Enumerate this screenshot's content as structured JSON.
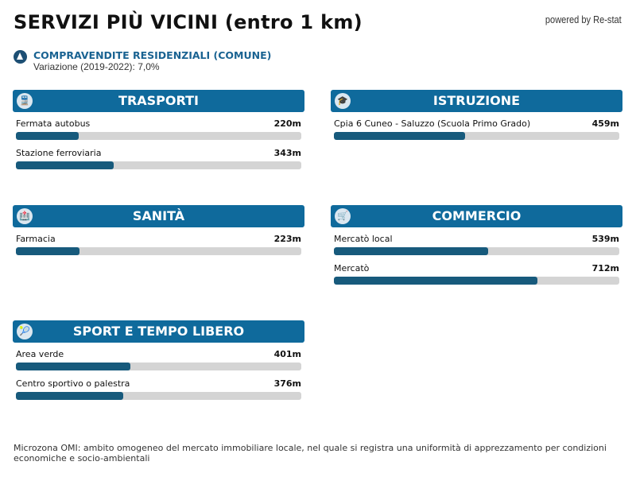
{
  "header": {
    "title": "SERVIZI PIÙ VICINI (entro 1 km)",
    "powered": "powered by Re-stat"
  },
  "trend": {
    "icon": "triangle-up-icon",
    "title": "COMPRAVENDITE RESIDENZIALI (COMUNE)",
    "subtitle": "Variazione (2019-2022): 7,0%"
  },
  "max_distance_m": 1000,
  "panels": [
    {
      "title": "TRASPORTI",
      "icon": "train-icon",
      "items": [
        {
          "label": "Fermata autobus",
          "value": "220m",
          "meters": 220
        },
        {
          "label": "Stazione ferroviaria",
          "value": "343m",
          "meters": 343
        }
      ]
    },
    {
      "title": "ISTRUZIONE",
      "icon": "school-icon",
      "items": [
        {
          "label": "Cpia 6 Cuneo - Saluzzo (Scuola Primo Grado)",
          "value": "459m",
          "meters": 459
        }
      ]
    },
    {
      "title": "SANITÀ",
      "icon": "hospital-icon",
      "items": [
        {
          "label": "Farmacia",
          "value": "223m",
          "meters": 223
        }
      ]
    },
    {
      "title": "COMMERCIO",
      "icon": "cart-icon",
      "items": [
        {
          "label": "Mercatò local",
          "value": "539m",
          "meters": 539
        },
        {
          "label": "Mercatò",
          "value": "712m",
          "meters": 712
        }
      ]
    },
    {
      "title": "SPORT E TEMPO LIBERO",
      "icon": "tennis-icon",
      "items": [
        {
          "label": "Area verde",
          "value": "401m",
          "meters": 401
        },
        {
          "label": "Centro sportivo o palestra",
          "value": "376m",
          "meters": 376
        }
      ]
    }
  ],
  "footer": "Microzona OMI: ambito omogeneo del mercato immobiliare locale, nel quale si registra una uniformità di apprezzamento per condizioni economiche e socio-ambientali",
  "colors": {
    "header": "#0f6a9c",
    "bar": "#175a7c",
    "track": "#d4d4d4"
  }
}
